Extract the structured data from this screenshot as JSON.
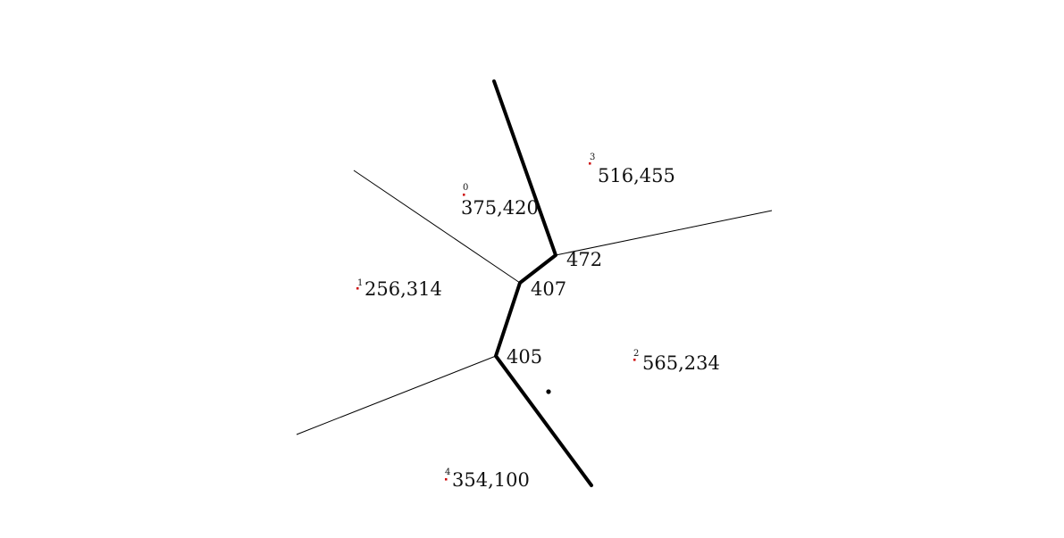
{
  "colors": {
    "background": "#ffffff",
    "edge": "#000000",
    "site_marker": "#cc0000",
    "label": "#111111"
  },
  "sites": [
    {
      "index": "0",
      "label": "375,420"
    },
    {
      "index": "1",
      "label": "256,314"
    },
    {
      "index": "2",
      "label": "565,234"
    },
    {
      "index": "3",
      "label": "516,455"
    },
    {
      "index": "4",
      "label": "354,100"
    }
  ],
  "vertices": [
    {
      "label": "472"
    },
    {
      "label": "407"
    },
    {
      "label": "405"
    }
  ]
}
